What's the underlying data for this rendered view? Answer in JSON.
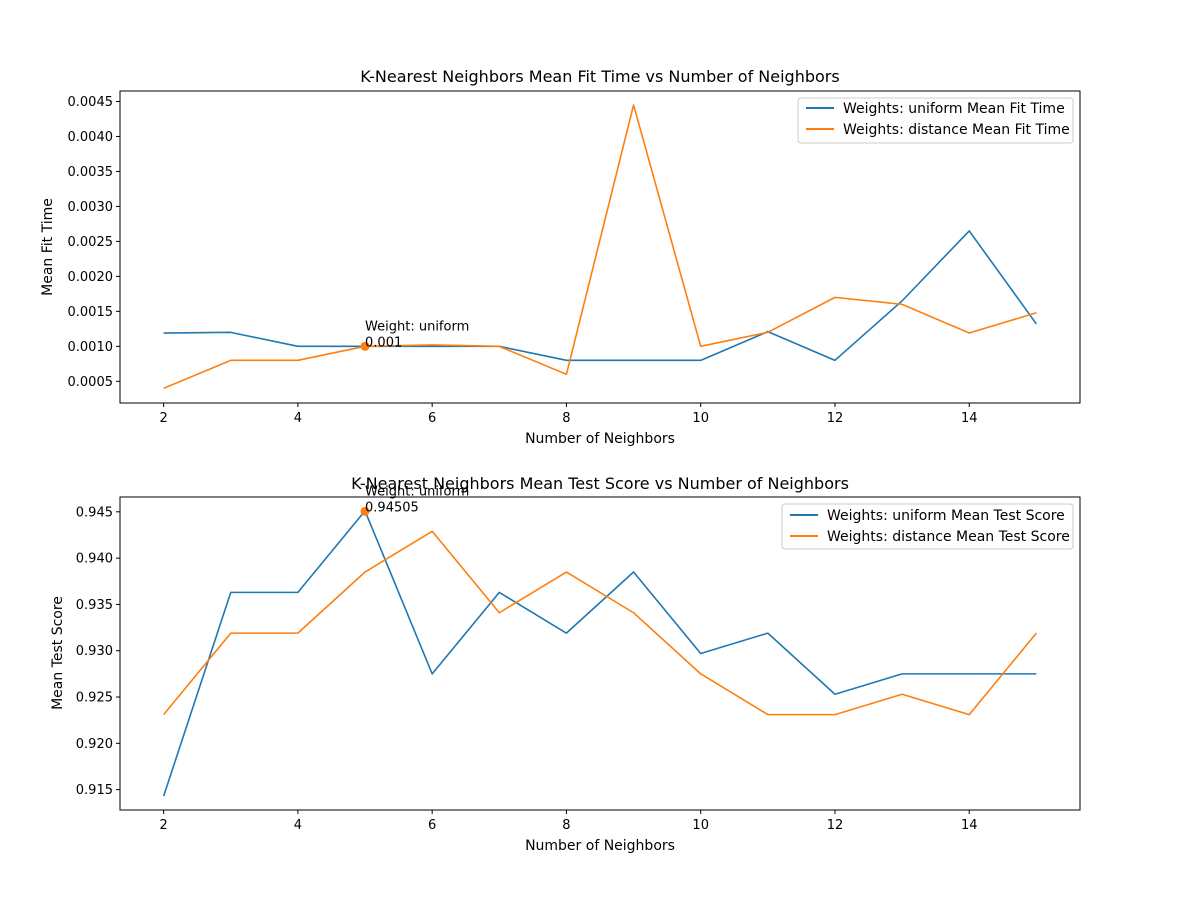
{
  "chart_data": [
    {
      "type": "line",
      "title": "K-Nearest Neighbors Mean Fit Time vs Number of Neighbors",
      "xlabel": "Number of Neighbors",
      "ylabel": "Mean Fit Time",
      "xlim": [
        1.35,
        15.65
      ],
      "ylim": [
        0.00019,
        0.00465
      ],
      "xticks": [
        2,
        4,
        6,
        8,
        10,
        12,
        14
      ],
      "xtick_labels": [
        "2",
        "4",
        "6",
        "8",
        "10",
        "12",
        "14"
      ],
      "yticks": [
        0.0005,
        0.001,
        0.0015,
        0.002,
        0.0025,
        0.003,
        0.0035,
        0.004,
        0.0045
      ],
      "ytick_labels": [
        "0.0005",
        "0.0010",
        "0.0015",
        "0.0020",
        "0.0025",
        "0.0030",
        "0.0035",
        "0.0040",
        "0.0045"
      ],
      "legend": "top-right",
      "grid": false,
      "x": [
        2,
        3,
        4,
        5,
        6,
        7,
        8,
        9,
        10,
        11,
        12,
        13,
        14,
        15
      ],
      "series": [
        {
          "name": "Weights: uniform Mean Fit Time",
          "color": "#1f77b4",
          "values": [
            0.00119,
            0.0012,
            0.001,
            0.001,
            0.001,
            0.001,
            0.0008,
            0.0008,
            0.0008,
            0.00121,
            0.0008,
            0.00165,
            0.00265,
            0.00132
          ]
        },
        {
          "name": "Weights: distance Mean Fit Time",
          "color": "#ff7f0e",
          "values": [
            0.0004,
            0.0008,
            0.0008,
            0.001,
            0.00102,
            0.001,
            0.0006,
            0.00445,
            0.001,
            0.0012,
            0.0017,
            0.0016,
            0.00119,
            0.00148
          ]
        }
      ],
      "annotation": {
        "x": 5,
        "y": 0.001,
        "color": "#ff7f0e",
        "line1": "Weight: uniform",
        "line2": "0.001"
      }
    },
    {
      "type": "line",
      "title": "K-Nearest Neighbors Mean Test Score vs Number of Neighbors",
      "xlabel": "Number of Neighbors",
      "ylabel": "Mean Test Score",
      "xlim": [
        1.35,
        15.65
      ],
      "ylim": [
        0.9128,
        0.9466
      ],
      "xticks": [
        2,
        4,
        6,
        8,
        10,
        12,
        14
      ],
      "xtick_labels": [
        "2",
        "4",
        "6",
        "8",
        "10",
        "12",
        "14"
      ],
      "yticks": [
        0.915,
        0.92,
        0.925,
        0.93,
        0.935,
        0.94,
        0.945
      ],
      "ytick_labels": [
        "0.915",
        "0.920",
        "0.925",
        "0.930",
        "0.935",
        "0.940",
        "0.945"
      ],
      "legend": "top-right",
      "grid": false,
      "x": [
        2,
        3,
        4,
        5,
        6,
        7,
        8,
        9,
        10,
        11,
        12,
        13,
        14,
        15
      ],
      "series": [
        {
          "name": "Weights: uniform Mean Test Score",
          "color": "#1f77b4",
          "values": [
            0.9143,
            0.9363,
            0.9363,
            0.9451,
            0.9275,
            0.9363,
            0.9319,
            0.9385,
            0.9297,
            0.9319,
            0.9253,
            0.9275,
            0.9275,
            0.9275
          ]
        },
        {
          "name": "Weights: distance Mean Test Score",
          "color": "#ff7f0e",
          "values": [
            0.9231,
            0.9319,
            0.9319,
            0.9385,
            0.9429,
            0.9341,
            0.9385,
            0.9341,
            0.9275,
            0.9231,
            0.9231,
            0.9253,
            0.9231,
            0.9319
          ]
        }
      ],
      "annotation": {
        "x": 5,
        "y": 0.94505,
        "color": "#ff7f0e",
        "line1": "Weight: uniform",
        "line2": "0.94505"
      }
    }
  ]
}
